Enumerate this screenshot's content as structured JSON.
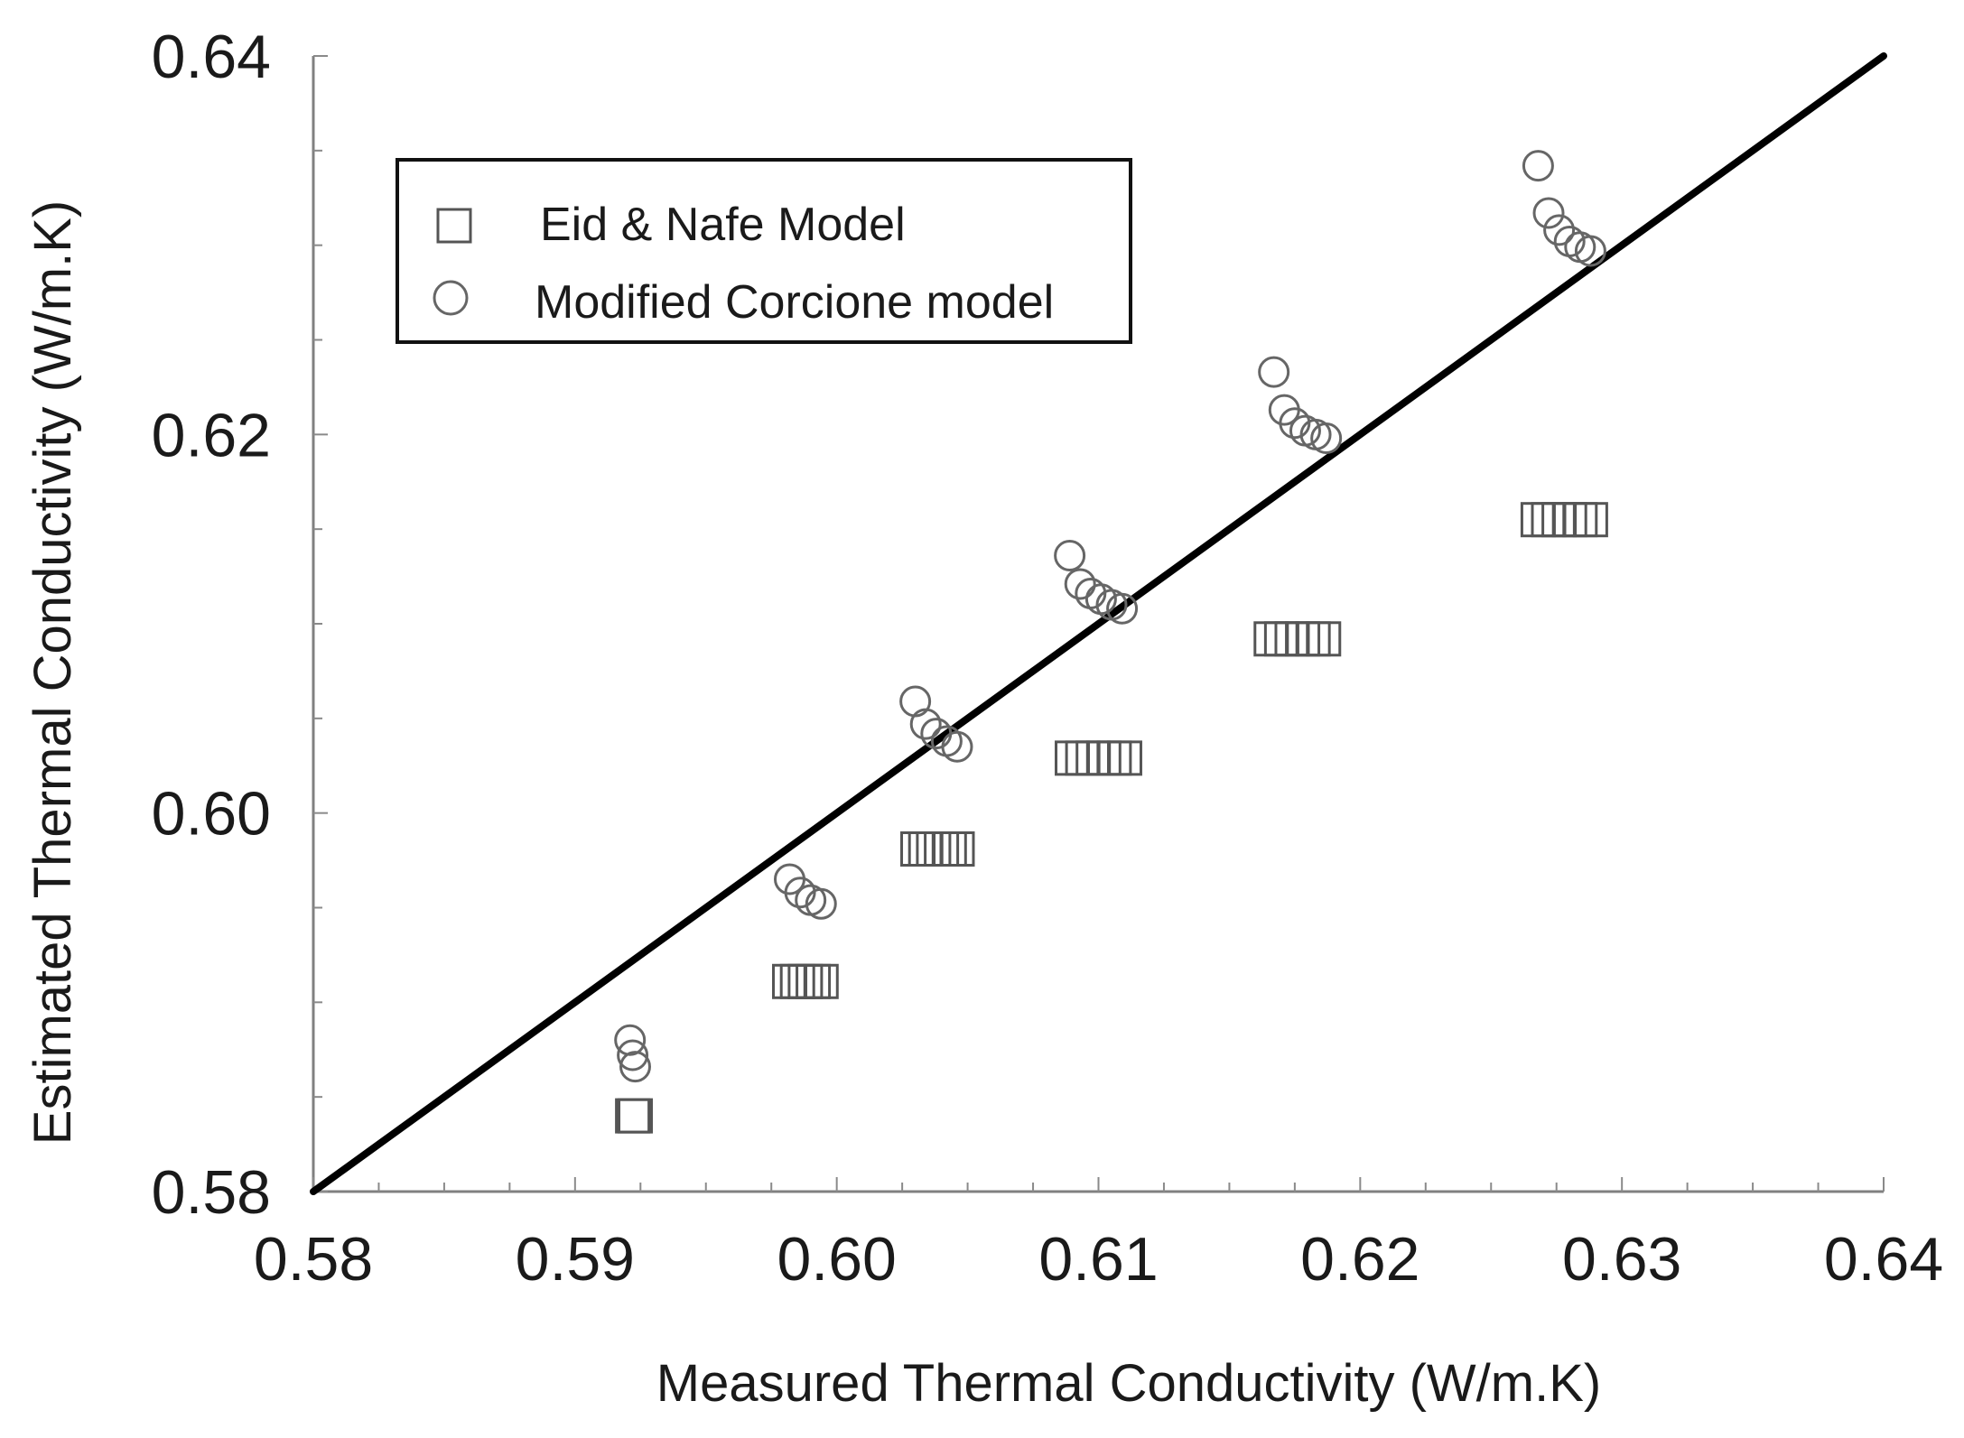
{
  "chart_data": {
    "type": "scatter",
    "title": "",
    "xlabel": "Measured Thermal Conductivity (W/m.K)",
    "ylabel": "Estimated Thermal Conductivity (W/m.K)",
    "xlim": [
      0.58,
      0.64
    ],
    "ylim": [
      0.58,
      0.64
    ],
    "x_ticks": [
      "0.58",
      "0.59",
      "0.60",
      "0.61",
      "0.62",
      "0.63",
      "0.64"
    ],
    "y_ticks": [
      "0.58",
      "0.60",
      "0.62",
      "0.64"
    ],
    "legend_position": "top-left",
    "reference_line": {
      "name": "y = x",
      "points": [
        [
          0.58,
          0.58
        ],
        [
          0.64,
          0.64
        ]
      ],
      "color": "#000000"
    },
    "series": [
      {
        "name": "Eid & Nafe Model",
        "marker": "square",
        "color": "#555555",
        "points": [
          [
            0.5922,
            0.584
          ],
          [
            0.5923,
            0.584
          ],
          [
            0.5982,
            0.5911
          ],
          [
            0.5985,
            0.5911
          ],
          [
            0.5988,
            0.5911
          ],
          [
            0.5991,
            0.5911
          ],
          [
            0.5994,
            0.5911
          ],
          [
            0.6031,
            0.5981
          ],
          [
            0.6034,
            0.5981
          ],
          [
            0.6037,
            0.5981
          ],
          [
            0.604,
            0.5981
          ],
          [
            0.6043,
            0.5981
          ],
          [
            0.6046,
            0.5981
          ],
          [
            0.609,
            0.6029
          ],
          [
            0.6094,
            0.6029
          ],
          [
            0.6098,
            0.6029
          ],
          [
            0.6102,
            0.6029
          ],
          [
            0.6106,
            0.6029
          ],
          [
            0.611,
            0.6029
          ],
          [
            0.6166,
            0.6092
          ],
          [
            0.617,
            0.6092
          ],
          [
            0.6174,
            0.6092
          ],
          [
            0.6178,
            0.6092
          ],
          [
            0.6182,
            0.6092
          ],
          [
            0.6186,
            0.6092
          ],
          [
            0.6268,
            0.6155
          ],
          [
            0.6272,
            0.6155
          ],
          [
            0.6276,
            0.6155
          ],
          [
            0.628,
            0.6155
          ],
          [
            0.6284,
            0.6155
          ],
          [
            0.6288,
            0.6155
          ]
        ]
      },
      {
        "name": "Modified Corcione model",
        "marker": "circle",
        "color": "#666666",
        "points": [
          [
            0.5921,
            0.588
          ],
          [
            0.5922,
            0.5872
          ],
          [
            0.5923,
            0.5866
          ],
          [
            0.5982,
            0.5965
          ],
          [
            0.5986,
            0.5958
          ],
          [
            0.599,
            0.5954
          ],
          [
            0.5994,
            0.5952
          ],
          [
            0.603,
            0.6059
          ],
          [
            0.6034,
            0.6047
          ],
          [
            0.6038,
            0.6042
          ],
          [
            0.6042,
            0.6038
          ],
          [
            0.6046,
            0.6035
          ],
          [
            0.6089,
            0.6136
          ],
          [
            0.6093,
            0.6121
          ],
          [
            0.6097,
            0.6116
          ],
          [
            0.6101,
            0.6113
          ],
          [
            0.6105,
            0.611
          ],
          [
            0.6109,
            0.6108
          ],
          [
            0.6167,
            0.6233
          ],
          [
            0.6171,
            0.6213
          ],
          [
            0.6175,
            0.6206
          ],
          [
            0.6179,
            0.6202
          ],
          [
            0.6183,
            0.62
          ],
          [
            0.6187,
            0.6198
          ],
          [
            0.6268,
            0.6342
          ],
          [
            0.6272,
            0.6317
          ],
          [
            0.6276,
            0.6308
          ],
          [
            0.628,
            0.6302
          ],
          [
            0.6284,
            0.6299
          ],
          [
            0.6288,
            0.6297
          ]
        ]
      }
    ]
  }
}
